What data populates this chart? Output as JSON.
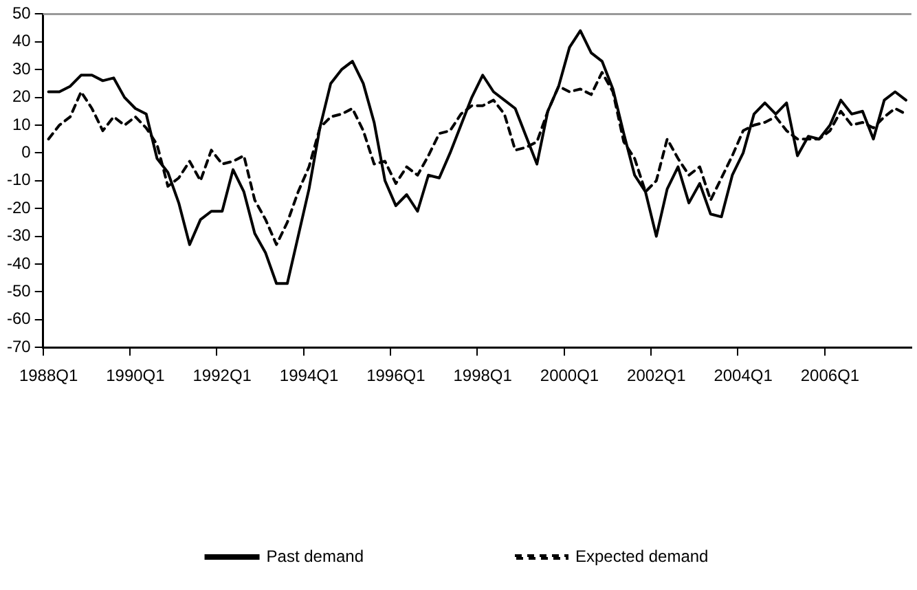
{
  "chart_data": {
    "type": "line",
    "categories": [
      "1988Q1",
      null,
      null,
      null,
      null,
      null,
      null,
      null,
      "1990Q1",
      null,
      null,
      null,
      null,
      null,
      null,
      null,
      "1992Q1",
      null,
      null,
      null,
      null,
      null,
      null,
      null,
      "1994Q1",
      null,
      null,
      null,
      null,
      null,
      null,
      null,
      "1996Q1",
      null,
      null,
      null,
      null,
      null,
      null,
      null,
      "1998Q1",
      null,
      null,
      null,
      null,
      null,
      null,
      null,
      "2000Q1",
      null,
      null,
      null,
      null,
      null,
      null,
      null,
      "2002Q1",
      null,
      null,
      null,
      null,
      null,
      null,
      null,
      "2004Q1",
      null,
      null,
      null,
      null,
      null,
      null,
      null,
      "2006Q1",
      null,
      null,
      null,
      null,
      null,
      null,
      null
    ],
    "series": [
      {
        "name": "Past demand",
        "color": "#000000",
        "line_style": "solid",
        "values": [
          22,
          22,
          24,
          28,
          28,
          26,
          27,
          20,
          16,
          14,
          -2,
          -7,
          -18,
          -33,
          -24,
          -21,
          -21,
          -6,
          -14,
          -29,
          -36,
          -47,
          -47,
          -30,
          -13,
          9,
          25,
          30,
          33,
          25,
          11,
          -10,
          -19,
          -15,
          -21,
          -8,
          -9,
          0,
          10,
          20,
          28,
          22,
          19,
          16,
          6,
          -4,
          15,
          24,
          38,
          44,
          36,
          33,
          23,
          7,
          -8,
          -14,
          -30,
          -13,
          -5,
          -18,
          -11,
          -22,
          -23,
          -8,
          0,
          14,
          18,
          14,
          18,
          -1,
          6,
          5,
          10,
          19,
          14,
          15,
          5,
          19,
          22,
          19
        ]
      },
      {
        "name": "Expected demand",
        "color": "#000000",
        "line_style": "dashed",
        "values": [
          5,
          10,
          13,
          22,
          16,
          8,
          13,
          10,
          13,
          9,
          3,
          -12,
          -9,
          -3,
          -10,
          1,
          -4,
          -3,
          -1,
          -17,
          -24,
          -33,
          -25,
          -14,
          -5,
          9,
          13,
          14,
          16,
          8,
          -4,
          -3,
          -11,
          -5,
          -8,
          -1,
          7,
          8,
          14,
          17,
          17,
          19,
          14,
          1,
          2,
          4,
          15,
          24,
          22,
          23,
          21,
          29,
          22,
          4,
          -2,
          -14,
          -10,
          5,
          -2,
          -8,
          -5,
          -17,
          -9,
          -1,
          8,
          10,
          11,
          13,
          8,
          5,
          5,
          5,
          8,
          15,
          10,
          11,
          9,
          13,
          16,
          14
        ]
      }
    ],
    "ylim": [
      -70,
      50
    ],
    "yticks": [
      -70,
      -60,
      -50,
      -40,
      -30,
      -20,
      -10,
      0,
      10,
      20,
      30,
      40,
      50
    ],
    "grid": false,
    "legend": "bottom",
    "marker": "none"
  }
}
